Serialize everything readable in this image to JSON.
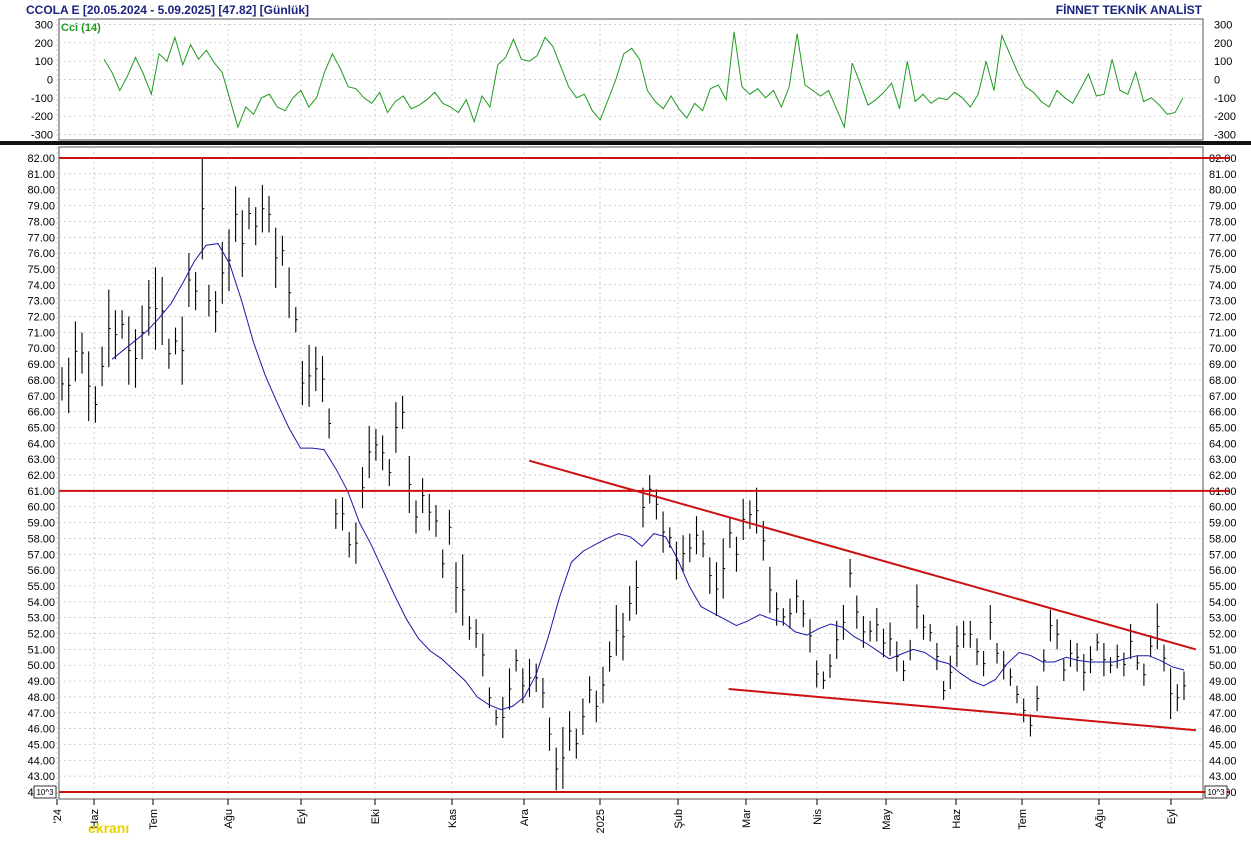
{
  "header": {
    "title": "CCOLA E  [20.05.2024 - 5.09.2025]  [47.82]  [Günlük]",
    "brand": "FİNNET TEKNİK ANALİST"
  },
  "cci_panel": {
    "label": "Cci (14)",
    "yticks": [
      "300",
      "200",
      "100",
      "0",
      "-100",
      "-200",
      "-300"
    ]
  },
  "price_panel": {
    "yticks": [
      "82.00",
      "81.00",
      "80.00",
      "79.00",
      "78.00",
      "77.00",
      "76.00",
      "75.00",
      "74.00",
      "73.00",
      "72.00",
      "71.00",
      "70.00",
      "69.00",
      "68.00",
      "67.00",
      "66.00",
      "65.00",
      "64.00",
      "63.00",
      "62.00",
      "61.00",
      "60.00",
      "59.00",
      "58.00",
      "57.00",
      "56.00",
      "55.00",
      "54.00",
      "53.00",
      "52.00",
      "51.00",
      "50.00",
      "49.00",
      "48.00",
      "47.00",
      "46.00",
      "45.00",
      "44.00",
      "43.00",
      "42.00"
    ],
    "scale_badge": "10^3",
    "xticks": [
      "'24",
      "Haz",
      "Tem",
      "Ağu",
      "Eyl",
      "Eki",
      "Kas",
      "Ara",
      "2025",
      "Şub",
      "Mar",
      "Nis",
      "May",
      "Haz",
      "Tem",
      "Ağu",
      "Eyl"
    ],
    "watermark": "ekranı"
  },
  "chart_data": [
    {
      "type": "line",
      "title": "Cci (14)",
      "ylim": [
        -330,
        330
      ],
      "grid": true,
      "series": [
        {
          "name": "Cci (14)",
          "color": "#1f9a1f",
          "x_range": [
            "2024-05-20",
            "2025-09-05"
          ],
          "values": [
            110,
            40,
            -60,
            20,
            120,
            30,
            -80,
            140,
            100,
            230,
            80,
            190,
            110,
            160,
            90,
            40,
            -110,
            -260,
            -150,
            -190,
            -100,
            -80,
            -150,
            -170,
            -100,
            -60,
            -150,
            -100,
            40,
            140,
            60,
            -40,
            -50,
            -100,
            -130,
            -70,
            -180,
            -120,
            -90,
            -160,
            -140,
            -110,
            -70,
            -130,
            -150,
            -180,
            -110,
            -230,
            -90,
            -150,
            80,
            120,
            220,
            110,
            100,
            130,
            230,
            180,
            70,
            -40,
            -100,
            -80,
            -170,
            -220,
            -110,
            0,
            140,
            170,
            110,
            -60,
            -120,
            -160,
            -90,
            -160,
            -210,
            -130,
            -170,
            -50,
            -30,
            -110,
            260,
            -40,
            -80,
            -50,
            -100,
            -60,
            -150,
            -40,
            250,
            -30,
            -60,
            -90,
            -60,
            -160,
            -260,
            90,
            -20,
            -140,
            -110,
            -70,
            -20,
            -160,
            100,
            -120,
            -80,
            -130,
            -100,
            -110,
            -70,
            -100,
            -150,
            -80,
            100,
            -60,
            240,
            140,
            40,
            -40,
            -70,
            -120,
            -150,
            -60,
            -100,
            -130,
            -50,
            30,
            -90,
            -80,
            110,
            -60,
            -80,
            40,
            -120,
            -100,
            -140,
            -190,
            -180,
            -100
          ],
          "values_note": ""
        }
      ],
      "hlines": [
        0
      ]
    },
    {
      "type": "candlestick",
      "ylim": [
        42,
        82
      ],
      "xticks": [
        "'24",
        "Haz",
        "Tem",
        "Ağu",
        "Eyl",
        "Eki",
        "Kas",
        "Ara",
        "2025",
        "Şub",
        "Mar",
        "Nis",
        "May",
        "Haz",
        "Tem",
        "Ağu",
        "Eyl"
      ],
      "grid": true,
      "horizontal_levels": [
        82.0,
        61.0,
        42.0
      ],
      "trendlines": [
        {
          "from": [
            "2024-12-03",
            62.9
          ],
          "to": [
            "2025-09-10",
            51.0
          ],
          "color": "#cc1111"
        },
        {
          "from": [
            "2025-02-25",
            48.5
          ],
          "to": [
            "2025-09-10",
            45.9
          ],
          "color": "#cc1111"
        }
      ],
      "series": [
        {
          "name": "OHLC",
          "color": "#000000",
          "values": [
            [
              68.8,
              66.7
            ],
            [
              69.4,
              65.9
            ],
            [
              71.7,
              67.9
            ],
            [
              71.0,
              68.4
            ],
            [
              69.8,
              65.4
            ],
            [
              67.6,
              65.3
            ],
            [
              70.1,
              67.6
            ],
            [
              73.7,
              68.8
            ],
            [
              72.4,
              69.3
            ],
            [
              72.4,
              70.6
            ],
            [
              72.0,
              67.7
            ],
            [
              71.2,
              67.5
            ],
            [
              72.7,
              69.3
            ],
            [
              74.3,
              70.8
            ],
            [
              75.1,
              69.9
            ],
            [
              74.5,
              70.2
            ],
            [
              70.6,
              68.7
            ],
            [
              71.3,
              69.6
            ],
            [
              72.0,
              67.7
            ],
            [
              76.0,
              72.6
            ],
            [
              74.8,
              72.4
            ],
            [
              82.0,
              75.6
            ],
            [
              74.0,
              72.0
            ],
            [
              73.6,
              71.0
            ],
            [
              76.7,
              72.8
            ],
            [
              77.5,
              73.6
            ],
            [
              80.2,
              76.7
            ],
            [
              78.7,
              74.5
            ],
            [
              79.5,
              77.5
            ],
            [
              78.9,
              76.5
            ],
            [
              80.3,
              77.3
            ],
            [
              79.6,
              77.3
            ],
            [
              77.6,
              73.8
            ],
            [
              77.1,
              75.2
            ],
            [
              75.1,
              71.9
            ],
            [
              72.6,
              71.0
            ],
            [
              69.2,
              66.4
            ],
            [
              70.2,
              66.3
            ],
            [
              70.1,
              67.3
            ],
            [
              69.5,
              66.6
            ],
            [
              66.2,
              64.3
            ],
            [
              60.5,
              58.6
            ],
            [
              60.6,
              58.5
            ],
            [
              58.4,
              56.8
            ],
            [
              59.0,
              56.4
            ],
            [
              62.5,
              59.9
            ],
            [
              65.1,
              61.8
            ],
            [
              64.9,
              62.9
            ],
            [
              64.5,
              62.3
            ],
            [
              63.0,
              61.3
            ],
            [
              66.6,
              63.4
            ],
            [
              67.0,
              64.9
            ],
            [
              63.2,
              59.6
            ],
            [
              60.4,
              58.3
            ],
            [
              61.8,
              59.6
            ],
            [
              60.8,
              58.5
            ],
            [
              60.1,
              58.1
            ],
            [
              57.3,
              55.5
            ],
            [
              59.8,
              57.6
            ],
            [
              56.5,
              53.3
            ],
            [
              57.0,
              52.5
            ],
            [
              53.1,
              51.6
            ],
            [
              52.9,
              51.1
            ],
            [
              52.0,
              49.3
            ],
            [
              48.6,
              47.3
            ],
            [
              47.2,
              46.2
            ],
            [
              48.0,
              45.4
            ],
            [
              49.8,
              47.2
            ],
            [
              51.0,
              49.6
            ],
            [
              49.8,
              47.6
            ],
            [
              50.4,
              48.0
            ],
            [
              50.1,
              48.3
            ],
            [
              49.2,
              47.3
            ],
            [
              46.7,
              44.6
            ],
            [
              44.8,
              42.1
            ],
            [
              46.1,
              42.2
            ],
            [
              47.1,
              44.6
            ],
            [
              46.0,
              44.1
            ],
            [
              47.9,
              45.6
            ],
            [
              49.3,
              47.6
            ],
            [
              48.4,
              46.4
            ],
            [
              49.9,
              47.6
            ],
            [
              51.5,
              49.6
            ],
            [
              53.8,
              50.6
            ],
            [
              53.3,
              50.3
            ],
            [
              55.0,
              52.8
            ],
            [
              56.6,
              53.2
            ],
            [
              61.2,
              58.7
            ],
            [
              62.0,
              60.2
            ],
            [
              61.1,
              59.2
            ],
            [
              59.7,
              57.1
            ],
            [
              58.7,
              57.4
            ],
            [
              57.8,
              55.4
            ],
            [
              58.2,
              55.9
            ],
            [
              58.3,
              56.5
            ],
            [
              59.4,
              57.0
            ],
            [
              58.5,
              56.8
            ],
            [
              56.8,
              54.5
            ],
            [
              56.5,
              53.1
            ],
            [
              58.0,
              54.2
            ],
            [
              59.3,
              57.4
            ],
            [
              58.1,
              55.9
            ],
            [
              60.5,
              57.9
            ],
            [
              60.4,
              58.6
            ],
            [
              61.2,
              58.3
            ],
            [
              59.1,
              56.6
            ],
            [
              56.2,
              53.3
            ],
            [
              54.6,
              52.5
            ],
            [
              53.6,
              52.5
            ],
            [
              54.2,
              52.3
            ],
            [
              55.4,
              53.3
            ],
            [
              54.1,
              52.4
            ],
            [
              52.9,
              50.8
            ],
            [
              50.3,
              48.6
            ],
            [
              49.6,
              48.5
            ],
            [
              50.7,
              49.2
            ],
            [
              52.8,
              50.4
            ],
            [
              53.8,
              51.6
            ],
            [
              56.7,
              54.9
            ],
            [
              54.4,
              52.3
            ],
            [
              53.1,
              51.1
            ],
            [
              52.8,
              51.5
            ],
            [
              53.6,
              51.5
            ],
            [
              52.3,
              50.5
            ],
            [
              52.7,
              50.6
            ],
            [
              51.5,
              49.6
            ],
            [
              50.3,
              49.0
            ],
            [
              51.6,
              50.3
            ],
            [
              55.1,
              52.3
            ],
            [
              53.2,
              51.6
            ],
            [
              52.6,
              51.5
            ],
            [
              51.4,
              49.7
            ],
            [
              49.0,
              47.8
            ],
            [
              50.6,
              48.5
            ],
            [
              52.5,
              49.9
            ],
            [
              52.8,
              51.1
            ],
            [
              52.8,
              51.1
            ],
            [
              51.7,
              50.0
            ],
            [
              50.9,
              49.3
            ],
            [
              53.8,
              51.6
            ],
            [
              51.4,
              50.1
            ],
            [
              50.9,
              49.1
            ],
            [
              49.8,
              48.7
            ],
            [
              48.7,
              47.6
            ],
            [
              47.9,
              46.4
            ],
            [
              46.9,
              45.5
            ],
            [
              48.7,
              47.1
            ],
            [
              51.0,
              49.6
            ],
            [
              53.5,
              51.5
            ],
            [
              52.9,
              51.0
            ],
            [
              50.4,
              49.0
            ],
            [
              51.6,
              49.9
            ],
            [
              51.4,
              49.6
            ],
            [
              50.7,
              48.4
            ],
            [
              51.2,
              49.5
            ],
            [
              52.0,
              50.9
            ],
            [
              51.4,
              49.3
            ],
            [
              50.5,
              49.5
            ],
            [
              51.3,
              49.8
            ],
            [
              50.8,
              49.3
            ],
            [
              52.6,
              50.4
            ],
            [
              50.6,
              49.7
            ],
            [
              50.1,
              48.7
            ],
            [
              51.9,
              50.5
            ],
            [
              53.9,
              51.0
            ],
            [
              51.3,
              49.6
            ],
            [
              49.8,
              46.6
            ],
            [
              48.8,
              47.1
            ],
            [
              49.6,
              47.8
            ]
          ],
          "values_note": "[high, low] per daily bar"
        },
        {
          "name": "Moving average",
          "color": "#1a1aa6",
          "values": [
            69.3,
            69.9,
            70.5,
            71.1,
            71.9,
            72.8,
            74.1,
            75.5,
            76.5,
            76.6,
            75.3,
            73.0,
            70.4,
            68.3,
            66.6,
            65.0,
            63.7,
            63.7,
            63.6,
            62.4,
            61.0,
            59.0,
            57.6,
            56.0,
            54.4,
            52.9,
            51.7,
            50.9,
            50.4,
            49.7,
            49.0,
            48.0,
            47.5,
            47.2,
            47.4,
            48.0,
            49.4,
            51.7,
            54.3,
            56.5,
            57.2,
            57.6,
            58.0,
            58.3,
            58.1,
            57.5,
            58.3,
            58.1,
            56.7,
            55.0,
            53.7,
            53.3,
            52.9,
            52.5,
            52.8,
            53.2,
            52.9,
            52.7,
            52.1,
            51.9,
            52.3,
            52.6,
            52.4,
            51.8,
            51.4,
            50.9,
            50.4,
            50.7,
            51.0,
            50.8,
            50.3,
            50.1,
            49.5,
            49.0,
            48.7,
            49.1,
            50.1,
            50.8,
            50.6,
            50.2,
            50.2,
            50.5,
            50.3,
            50.2,
            50.2,
            50.2,
            50.4,
            50.6,
            50.6,
            50.3,
            49.9,
            49.7
          ],
          "values_note": ""
        }
      ]
    }
  ]
}
